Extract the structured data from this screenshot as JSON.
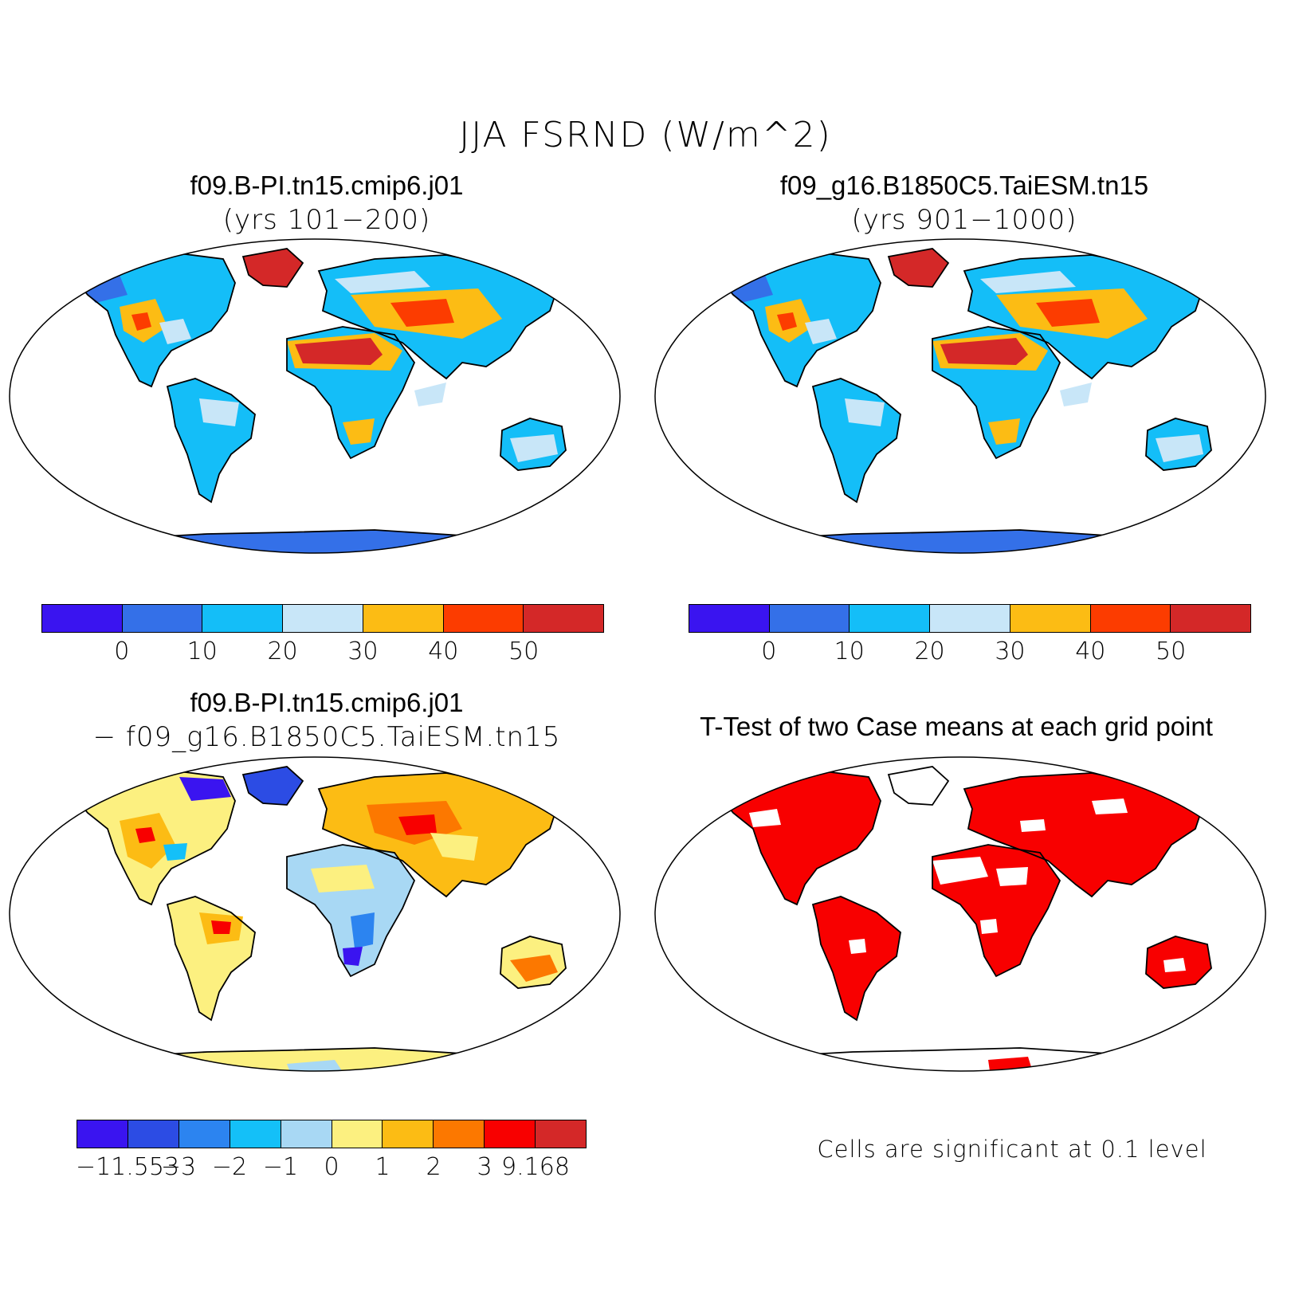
{
  "figure": {
    "title": "JJA FSRND (W/m^2)"
  },
  "panels": [
    {
      "title": "f09.B-PI.tn15.cmip6.j01",
      "subtitle": "(yrs 101−200)"
    },
    {
      "title": "f09_g16.B1850C5.TaiESM.tn15",
      "subtitle": "(yrs 901−1000)"
    },
    {
      "title": "f09.B-PI.tn15.cmip6.j01",
      "subtitle": "− f09_g16.B1850C5.TaiESM.tn15"
    },
    {
      "title": "T-Test of two Case means at each grid point",
      "note": "Cells are significant at 0.1 level"
    }
  ],
  "colorbar_abs": {
    "colors": [
      "#3a14f0",
      "#3470e8",
      "#14bef8",
      "#c8e6f8",
      "#fcbc14",
      "#fc3c00",
      "#d42828"
    ],
    "labels": [
      "0",
      "10",
      "20",
      "30",
      "40",
      "50"
    ]
  },
  "colorbar_diff": {
    "colors": [
      "#3a14f0",
      "#2c4ce4",
      "#2c84f0",
      "#14c0f8",
      "#a8d8f4",
      "#fcf080",
      "#fcbc14",
      "#fc7800",
      "#f80000",
      "#d42828"
    ],
    "labels": [
      "−11.553",
      "−3",
      "−2",
      "−1",
      "0",
      "1",
      "2",
      "3",
      "9.168"
    ]
  },
  "significance_color": "#f80000"
}
